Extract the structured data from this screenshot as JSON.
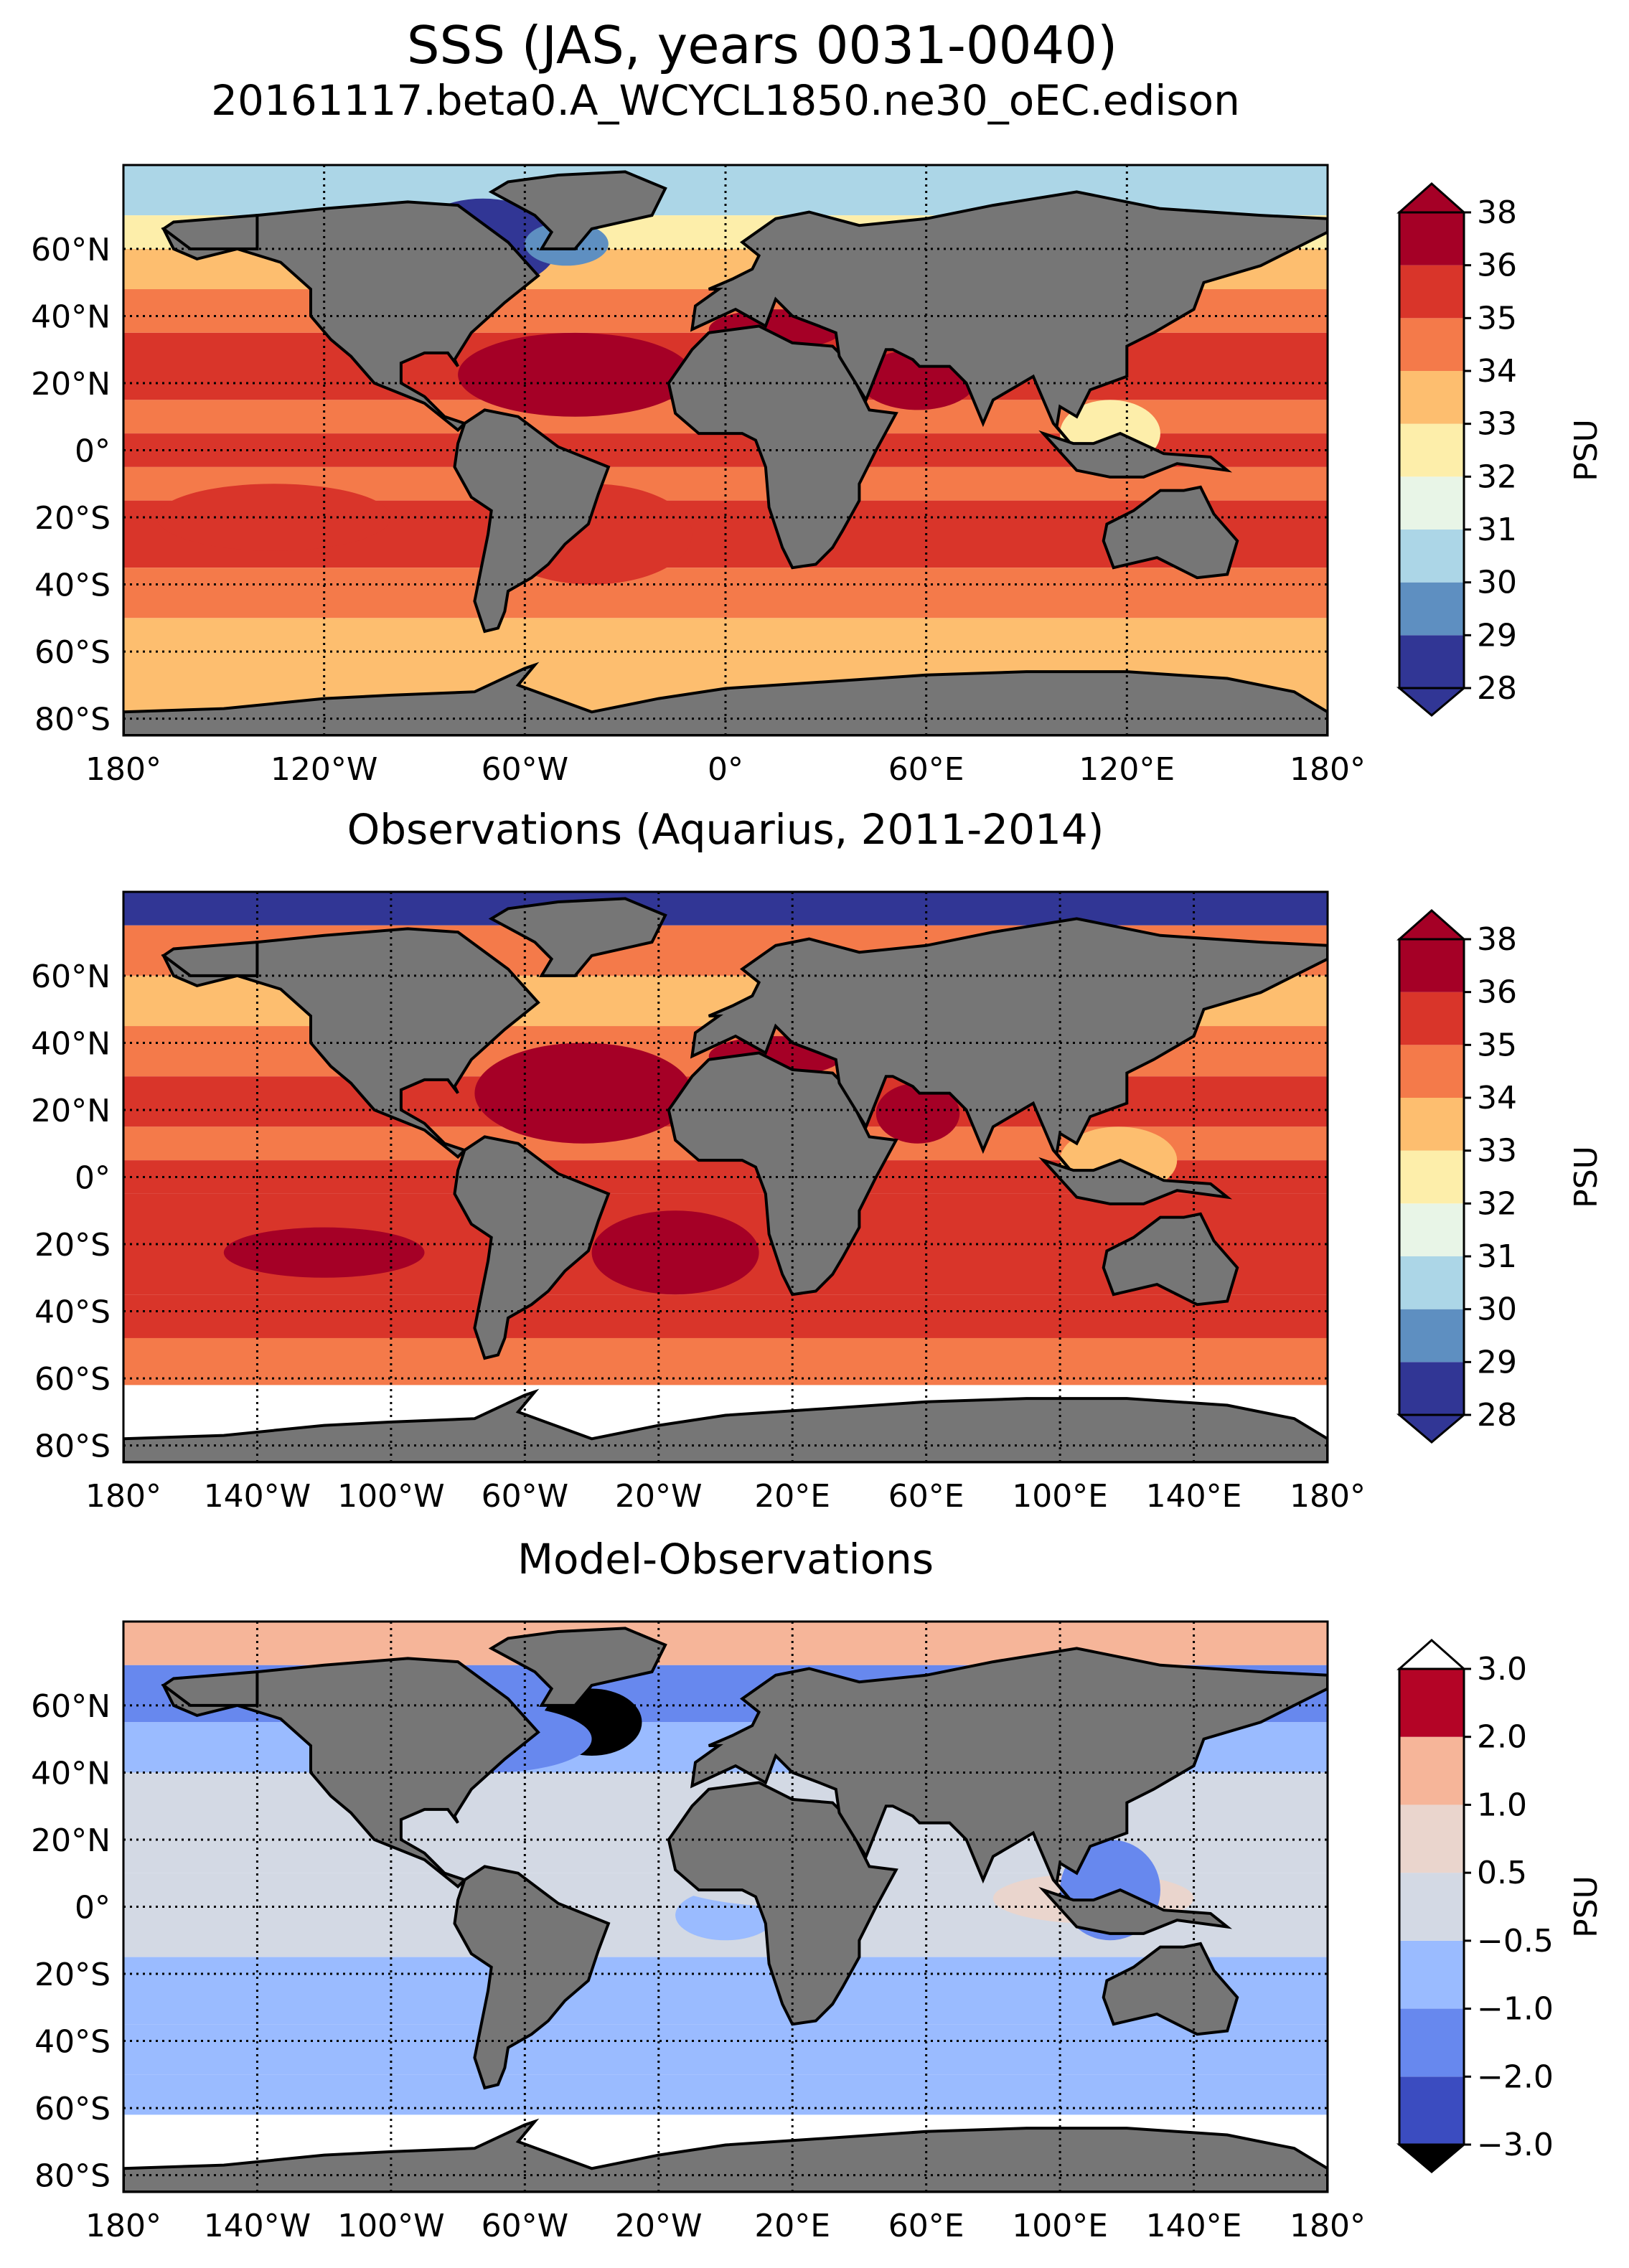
{
  "figure": {
    "title": "SSS (JAS, years 0031-0040)",
    "subtitle": "20161117.beta0.A_WCYCL1850.ne30_oEC.edison",
    "land_color": "#767676"
  },
  "chart_data": [
    {
      "type": "heatmap",
      "name": "model",
      "title": "",
      "xlabel": "",
      "ylabel": "",
      "xlim": [
        -180,
        180
      ],
      "ylim": [
        -85,
        85
      ],
      "xtick_values": [
        -180,
        -120,
        -60,
        0,
        60,
        120,
        180
      ],
      "xtick_labels": [
        "180°",
        "120°W",
        "60°W",
        "0°",
        "60°E",
        "120°E",
        "180°"
      ],
      "ytick_values": [
        60,
        40,
        20,
        0,
        -20,
        -40,
        -60,
        -80
      ],
      "ytick_labels": [
        "60°N",
        "40°N",
        "20°N",
        "0°",
        "20°S",
        "40°S",
        "60°S",
        "80°S"
      ],
      "grid": true,
      "grid_style": "dotted",
      "colorbar": {
        "label": "PSU",
        "tick_labels": [
          "28",
          "29",
          "30",
          "31",
          "32",
          "33",
          "34",
          "35",
          "36",
          "38"
        ],
        "colors": [
          "#313695",
          "#5e8fc1",
          "#acd6e7",
          "#e8f5e7",
          "#fdeeaa",
          "#fdbe6f",
          "#f47a4a",
          "#d9352a",
          "#a50026"
        ],
        "extend_low": "#313695",
        "extend_high": "#a50026"
      },
      "obs_coverage_south": null,
      "bands": [
        {
          "lat": [
            70,
            85
          ],
          "level": 2
        },
        {
          "lat": [
            60,
            70
          ],
          "level": 4
        },
        {
          "lat": [
            48,
            60
          ],
          "level": 5
        },
        {
          "lat": [
            35,
            48
          ],
          "level": 6
        },
        {
          "lat": [
            15,
            35
          ],
          "level": 7
        },
        {
          "lat": [
            5,
            15
          ],
          "level": 6
        },
        {
          "lat": [
            -5,
            5
          ],
          "level": 7
        },
        {
          "lat": [
            -15,
            -5
          ],
          "level": 6
        },
        {
          "lat": [
            -35,
            -15
          ],
          "level": 7
        },
        {
          "lat": [
            -50,
            -35
          ],
          "level": 6
        },
        {
          "lat": [
            -78,
            -50
          ],
          "level": 5
        }
      ],
      "patches": [
        {
          "lon": [
            -80,
            -10
          ],
          "lat": [
            10,
            35
          ],
          "level": 8
        },
        {
          "lon": [
            -5,
            35
          ],
          "lat": [
            30,
            42
          ],
          "level": 8
        },
        {
          "lon": [
            40,
            75
          ],
          "lat": [
            12,
            30
          ],
          "level": 8
        },
        {
          "lon": [
            -170,
            -100
          ],
          "lat": [
            -30,
            -10
          ],
          "level": 7
        },
        {
          "lon": [
            -95,
            -50
          ],
          "lat": [
            48,
            75
          ],
          "level": 0
        },
        {
          "lon": [
            -60,
            -35
          ],
          "lat": [
            55,
            68
          ],
          "level": 1
        },
        {
          "lon": [
            100,
            130
          ],
          "lat": [
            -5,
            15
          ],
          "level": 4
        },
        {
          "lon": [
            -70,
            -10
          ],
          "lat": [
            -40,
            -10
          ],
          "level": 7
        }
      ]
    },
    {
      "type": "heatmap",
      "name": "observations",
      "title": "Observations (Aquarius, 2011-2014)",
      "xlabel": "",
      "ylabel": "",
      "xlim": [
        -180,
        180
      ],
      "ylim": [
        -85,
        85
      ],
      "xtick_values": [
        -180,
        -140,
        -100,
        -60,
        -20,
        20,
        60,
        100,
        140,
        180
      ],
      "xtick_labels": [
        "180°",
        "140°W",
        "100°W",
        "60°W",
        "20°W",
        "20°E",
        "60°E",
        "100°E",
        "140°E",
        "180°"
      ],
      "ytick_values": [
        60,
        40,
        20,
        0,
        -20,
        -40,
        -60,
        -80
      ],
      "ytick_labels": [
        "60°N",
        "40°N",
        "20°N",
        "0°",
        "20°S",
        "40°S",
        "60°S",
        "80°S"
      ],
      "grid": true,
      "grid_style": "dotted",
      "colorbar": {
        "label": "PSU",
        "tick_labels": [
          "28",
          "29",
          "30",
          "31",
          "32",
          "33",
          "34",
          "35",
          "36",
          "38"
        ],
        "colors": [
          "#313695",
          "#5e8fc1",
          "#acd6e7",
          "#e8f5e7",
          "#fdeeaa",
          "#fdbe6f",
          "#f47a4a",
          "#d9352a",
          "#a50026"
        ],
        "extend_low": "#313695",
        "extend_high": "#a50026"
      },
      "obs_coverage_south": -62,
      "bands": [
        {
          "lat": [
            75,
            85
          ],
          "level": 0
        },
        {
          "lat": [
            60,
            75
          ],
          "level": 6
        },
        {
          "lat": [
            45,
            60
          ],
          "level": 5
        },
        {
          "lat": [
            30,
            45
          ],
          "level": 6
        },
        {
          "lat": [
            15,
            30
          ],
          "level": 7
        },
        {
          "lat": [
            5,
            15
          ],
          "level": 6
        },
        {
          "lat": [
            -5,
            5
          ],
          "level": 7
        },
        {
          "lat": [
            -35,
            -5
          ],
          "level": 7
        },
        {
          "lat": [
            -48,
            -35
          ],
          "level": 7
        },
        {
          "lat": [
            -62,
            -48
          ],
          "level": 6
        }
      ],
      "patches": [
        {
          "lon": [
            -75,
            -10
          ],
          "lat": [
            10,
            40
          ],
          "level": 8
        },
        {
          "lon": [
            -5,
            35
          ],
          "lat": [
            30,
            42
          ],
          "level": 8
        },
        {
          "lon": [
            -40,
            10
          ],
          "lat": [
            -35,
            -10
          ],
          "level": 8
        },
        {
          "lon": [
            45,
            70
          ],
          "lat": [
            10,
            28
          ],
          "level": 8
        },
        {
          "lon": [
            -150,
            -90
          ],
          "lat": [
            -30,
            -15
          ],
          "level": 8
        },
        {
          "lon": [
            100,
            135
          ],
          "lat": [
            -5,
            15
          ],
          "level": 5
        }
      ]
    },
    {
      "type": "heatmap",
      "name": "difference",
      "title": "Model-Observations",
      "xlabel": "",
      "ylabel": "",
      "xlim": [
        -180,
        180
      ],
      "ylim": [
        -85,
        85
      ],
      "xtick_values": [
        -180,
        -140,
        -100,
        -60,
        -20,
        20,
        60,
        100,
        140,
        180
      ],
      "xtick_labels": [
        "180°",
        "140°W",
        "100°W",
        "60°W",
        "20°W",
        "20°E",
        "60°E",
        "100°E",
        "140°E",
        "180°"
      ],
      "ytick_values": [
        60,
        40,
        20,
        0,
        -20,
        -40,
        -60,
        -80
      ],
      "ytick_labels": [
        "60°N",
        "40°N",
        "20°N",
        "0°",
        "20°S",
        "40°S",
        "60°S",
        "80°S"
      ],
      "grid": true,
      "grid_style": "dotted",
      "colorbar": {
        "label": "PSU",
        "tick_labels": [
          "−3.0",
          "−2.0",
          "−1.0",
          "−0.5",
          "0.5",
          "1.0",
          "2.0",
          "3.0"
        ],
        "colors": [
          "#3b4cc0",
          "#6788ee",
          "#9abbff",
          "#d3d9e4",
          "#ead5cd",
          "#f6b599",
          "#b40426"
        ],
        "extend_low": "#000000",
        "extend_high": "#ffffff"
      },
      "obs_coverage_south": -62,
      "bands": [
        {
          "lat": [
            72,
            85
          ],
          "level": 5
        },
        {
          "lat": [
            55,
            72
          ],
          "level": 1
        },
        {
          "lat": [
            40,
            55
          ],
          "level": 2
        },
        {
          "lat": [
            10,
            40
          ],
          "level": 3
        },
        {
          "lat": [
            -15,
            10
          ],
          "level": 3
        },
        {
          "lat": [
            -35,
            -15
          ],
          "level": 2
        },
        {
          "lat": [
            -50,
            -35
          ],
          "level": 2
        },
        {
          "lat": [
            -62,
            -50
          ],
          "level": 2
        }
      ],
      "patches": [
        {
          "lon": [
            -55,
            -25
          ],
          "lat": [
            45,
            65
          ],
          "level": -1
        },
        {
          "lon": [
            -100,
            -40
          ],
          "lat": [
            40,
            60
          ],
          "level": 1
        },
        {
          "lon": [
            -15,
            15
          ],
          "lat": [
            -10,
            5
          ],
          "level": 2
        },
        {
          "lon": [
            80,
            140
          ],
          "lat": [
            -5,
            10
          ],
          "level": 4
        },
        {
          "lon": [
            -20,
            60
          ],
          "lat": [
            0,
            20
          ],
          "level": 3
        },
        {
          "lon": [
            100,
            130
          ],
          "lat": [
            -10,
            20
          ],
          "level": 1
        }
      ]
    }
  ]
}
